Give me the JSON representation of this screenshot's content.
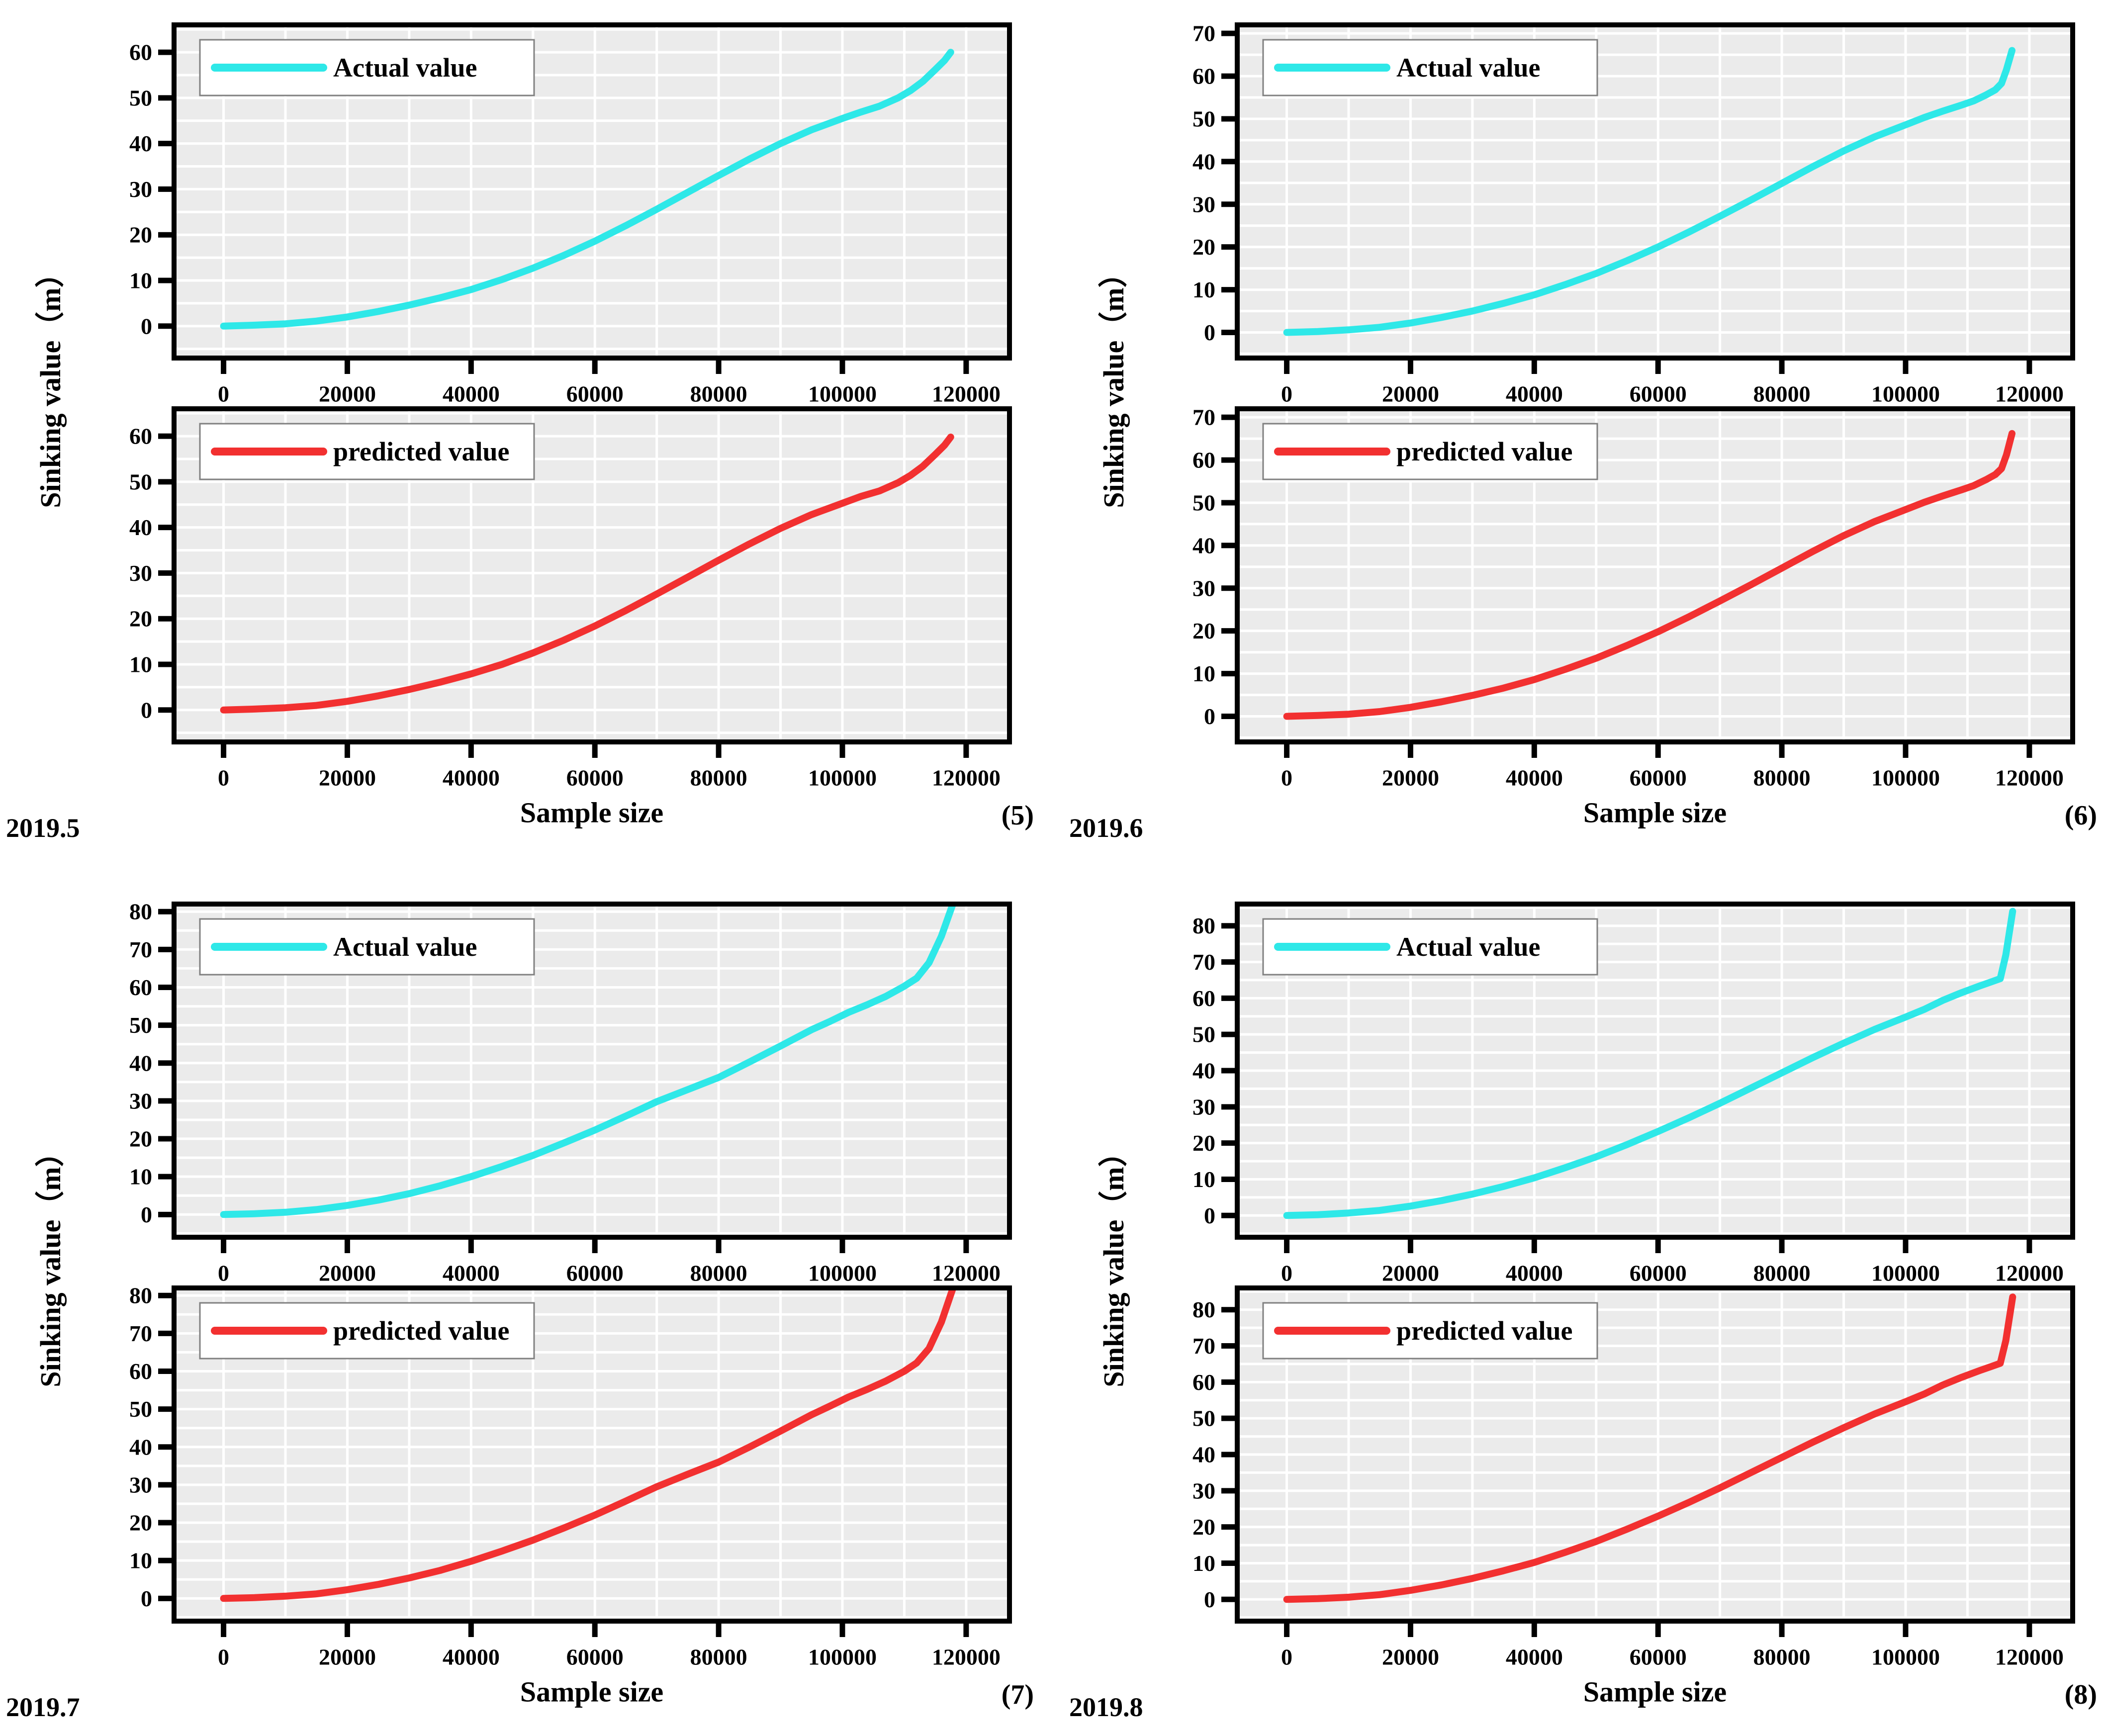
{
  "figure": {
    "colors": {
      "actual": "#2ee8e8",
      "predicted": "#f23030",
      "plot_bg": "#ebebeb",
      "grid": "#ffffff",
      "frame": "#000000",
      "legend_bg": "#ffffff",
      "legend_border": "#808080"
    }
  },
  "chart_data": [
    {
      "type": "line",
      "panel_number": "(5)",
      "date_label": "2019.5",
      "xlabel": "Sample size",
      "ylabel": "Sinking value（m）",
      "xlim": [
        -8000,
        127000
      ],
      "xticks": [
        0,
        20000,
        40000,
        60000,
        80000,
        100000,
        120000
      ],
      "ylim": [
        -7,
        66
      ],
      "yticks": [
        0,
        10,
        20,
        30,
        40,
        50,
        60
      ],
      "grid_on": true,
      "legend_position": "top-left",
      "x": [
        0,
        5000,
        10000,
        15000,
        20000,
        25000,
        30000,
        35000,
        40000,
        45000,
        50000,
        55000,
        60000,
        65000,
        70000,
        75000,
        80000,
        85000,
        90000,
        95000,
        100000,
        103000,
        106000,
        109000,
        111000,
        113000,
        115000,
        116500,
        117500
      ],
      "actual_y": [
        0,
        0.2,
        0.5,
        1.1,
        2.0,
        3.2,
        4.6,
        6.2,
        8.0,
        10.2,
        12.7,
        15.5,
        18.6,
        22.0,
        25.6,
        29.3,
        33.0,
        36.6,
        40.0,
        43.0,
        45.5,
        46.9,
        48.2,
        50.0,
        51.6,
        53.6,
        56.2,
        58.2,
        60.0
      ],
      "predicted_y": [
        0,
        0.2,
        0.5,
        1.0,
        1.9,
        3.1,
        4.5,
        6.1,
        7.9,
        10.0,
        12.5,
        15.3,
        18.4,
        21.8,
        25.4,
        29.1,
        32.8,
        36.4,
        39.8,
        42.8,
        45.3,
        46.8,
        48.0,
        49.8,
        51.4,
        53.4,
        56.0,
        58.0,
        59.8
      ],
      "charts": [
        {
          "legend": "Actual value",
          "color_key": "actual",
          "y_key": "actual_y"
        },
        {
          "legend": "predicted value",
          "color_key": "predicted",
          "y_key": "predicted_y"
        }
      ]
    },
    {
      "type": "line",
      "panel_number": "(6)",
      "date_label": "2019.6",
      "xlabel": "Sample size",
      "ylabel": "Sinking value（m）",
      "xlim": [
        -8000,
        127000
      ],
      "xticks": [
        0,
        20000,
        40000,
        60000,
        80000,
        100000,
        120000
      ],
      "ylim": [
        -6,
        72
      ],
      "yticks": [
        0,
        10,
        20,
        30,
        40,
        50,
        60,
        70
      ],
      "grid_on": true,
      "legend_position": "top-left",
      "x": [
        0,
        5000,
        10000,
        15000,
        20000,
        25000,
        30000,
        35000,
        40000,
        45000,
        50000,
        55000,
        60000,
        65000,
        70000,
        75000,
        80000,
        85000,
        90000,
        95000,
        100000,
        103000,
        106000,
        109000,
        111000,
        113000,
        114500,
        115500,
        116300,
        117200
      ],
      "actual_y": [
        0,
        0.2,
        0.6,
        1.2,
        2.2,
        3.5,
        5.0,
        6.8,
        8.8,
        11.2,
        13.8,
        16.8,
        20.0,
        23.5,
        27.2,
        31.0,
        34.9,
        38.8,
        42.5,
        45.8,
        48.6,
        50.3,
        51.8,
        53.2,
        54.2,
        55.6,
        56.8,
        58.3,
        61.5,
        66.0
      ],
      "predicted_y": [
        0,
        0.2,
        0.5,
        1.1,
        2.1,
        3.4,
        4.9,
        6.6,
        8.6,
        11.0,
        13.6,
        16.6,
        19.8,
        23.3,
        27.0,
        30.8,
        34.7,
        38.6,
        42.3,
        45.6,
        48.4,
        50.1,
        51.6,
        53.0,
        54.0,
        55.4,
        56.6,
        58.0,
        61.2,
        66.2
      ],
      "charts": [
        {
          "legend": "Actual value",
          "color_key": "actual",
          "y_key": "actual_y"
        },
        {
          "legend": "predicted value",
          "color_key": "predicted",
          "y_key": "predicted_y"
        }
      ]
    },
    {
      "type": "line",
      "panel_number": "(7)",
      "date_label": "2019.7",
      "xlabel": "Sample size",
      "ylabel": "Sinking value（m）",
      "xlim": [
        -8000,
        127000
      ],
      "xticks": [
        0,
        20000,
        40000,
        60000,
        80000,
        100000,
        120000
      ],
      "ylim": [
        -6,
        82
      ],
      "yticks": [
        0,
        10,
        20,
        30,
        40,
        50,
        60,
        70,
        80
      ],
      "grid_on": true,
      "legend_position": "top-left",
      "x": [
        0,
        5000,
        10000,
        15000,
        20000,
        25000,
        30000,
        35000,
        40000,
        45000,
        50000,
        55000,
        60000,
        65000,
        70000,
        75000,
        80000,
        85000,
        90000,
        95000,
        98000,
        101000,
        104000,
        107000,
        110000,
        112000,
        114000,
        116000,
        118500
      ],
      "actual_y": [
        0,
        0.2,
        0.6,
        1.3,
        2.4,
        3.8,
        5.5,
        7.6,
        10.0,
        12.7,
        15.6,
        18.9,
        22.3,
        26.0,
        29.8,
        33.0,
        36.2,
        40.3,
        44.5,
        48.8,
        51.0,
        53.4,
        55.4,
        57.6,
        60.3,
        62.4,
        66.5,
        73.5,
        85.0
      ],
      "predicted_y": [
        0,
        0.2,
        0.6,
        1.2,
        2.3,
        3.7,
        5.4,
        7.4,
        9.8,
        12.5,
        15.4,
        18.6,
        22.0,
        25.7,
        29.5,
        32.8,
        36.0,
        40.0,
        44.2,
        48.5,
        50.8,
        53.2,
        55.2,
        57.4,
        60.0,
        62.2,
        66.0,
        73.0,
        85.0
      ],
      "charts": [
        {
          "legend": "Actual value",
          "color_key": "actual",
          "y_key": "actual_y"
        },
        {
          "legend": "predicted value",
          "color_key": "predicted",
          "y_key": "predicted_y"
        }
      ]
    },
    {
      "type": "line",
      "panel_number": "(8)",
      "date_label": "2019.8",
      "xlabel": "Sample size",
      "ylabel": "Sinking value（m）",
      "xlim": [
        -8000,
        127000
      ],
      "xticks": [
        0,
        20000,
        40000,
        60000,
        80000,
        100000,
        120000
      ],
      "ylim": [
        -6,
        86
      ],
      "yticks": [
        0,
        10,
        20,
        30,
        40,
        50,
        60,
        70,
        80
      ],
      "grid_on": true,
      "legend_position": "top-left",
      "x": [
        0,
        5000,
        10000,
        15000,
        20000,
        25000,
        30000,
        35000,
        40000,
        45000,
        50000,
        55000,
        60000,
        65000,
        70000,
        75000,
        80000,
        85000,
        90000,
        95000,
        100000,
        103000,
        106000,
        109000,
        112000,
        114000,
        115300,
        116200,
        117300
      ],
      "actual_y": [
        0,
        0.2,
        0.7,
        1.4,
        2.6,
        4.1,
        5.9,
        8.0,
        10.4,
        13.2,
        16.2,
        19.6,
        23.2,
        27.0,
        31.0,
        35.2,
        39.4,
        43.6,
        47.6,
        51.4,
        54.8,
        56.9,
        59.4,
        61.5,
        63.4,
        64.6,
        65.4,
        72.0,
        84.0
      ],
      "predicted_y": [
        0,
        0.2,
        0.6,
        1.3,
        2.5,
        4.0,
        5.8,
        7.9,
        10.2,
        13.0,
        16.0,
        19.4,
        23.0,
        26.8,
        30.8,
        35.0,
        39.2,
        43.4,
        47.4,
        51.2,
        54.6,
        56.7,
        59.2,
        61.3,
        63.2,
        64.4,
        65.2,
        71.5,
        83.5
      ],
      "charts": [
        {
          "legend": "Actual value",
          "color_key": "actual",
          "y_key": "actual_y"
        },
        {
          "legend": "predicted value",
          "color_key": "predicted",
          "y_key": "predicted_y"
        }
      ]
    }
  ]
}
